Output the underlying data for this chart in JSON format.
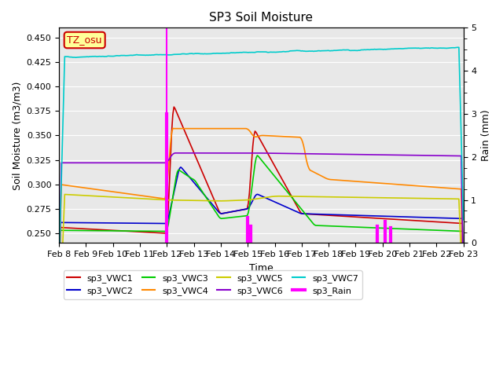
{
  "title": "SP3 Soil Moisture",
  "xlabel": "Time",
  "ylabel_left": "Soil Moisture (m3/m3)",
  "ylabel_right": "Rain (mm)",
  "ylim_left": [
    0.24,
    0.46
  ],
  "ylim_right": [
    0.0,
    5.0
  ],
  "xlim": [
    0,
    15
  ],
  "x_tick_labels": [
    "Feb 8",
    "Feb 9",
    "Feb 10",
    "Feb 11",
    "Feb 12",
    "Feb 13",
    "Feb 14",
    "Feb 15",
    "Feb 16",
    "Feb 17",
    "Feb 18",
    "Feb 19",
    "Feb 20",
    "Feb 21",
    "Feb 22",
    "Feb 23"
  ],
  "annotation_label": "TZ_osu",
  "annotation_color": "#cc0000",
  "annotation_bg": "#ffff99",
  "background_color": "#e8e8e8",
  "colors": {
    "VWC1": "#cc0000",
    "VWC2": "#0000cc",
    "VWC3": "#00cc00",
    "VWC4": "#ff8800",
    "VWC5": "#cccc00",
    "VWC6": "#8800cc",
    "VWC7": "#00cccc",
    "Rain": "#ff00ff"
  },
  "legend_entries": [
    {
      "label": "sp3_VWC1",
      "color": "#cc0000"
    },
    {
      "label": "sp3_VWC2",
      "color": "#0000cc"
    },
    {
      "label": "sp3_VWC3",
      "color": "#00cc00"
    },
    {
      "label": "sp3_VWC4",
      "color": "#ff8800"
    },
    {
      "label": "sp3_VWC5",
      "color": "#cccc00"
    },
    {
      "label": "sp3_VWC6",
      "color": "#8800cc"
    },
    {
      "label": "sp3_VWC7",
      "color": "#00cccc"
    },
    {
      "label": "sp3_Rain",
      "color": "#ff00ff"
    }
  ]
}
